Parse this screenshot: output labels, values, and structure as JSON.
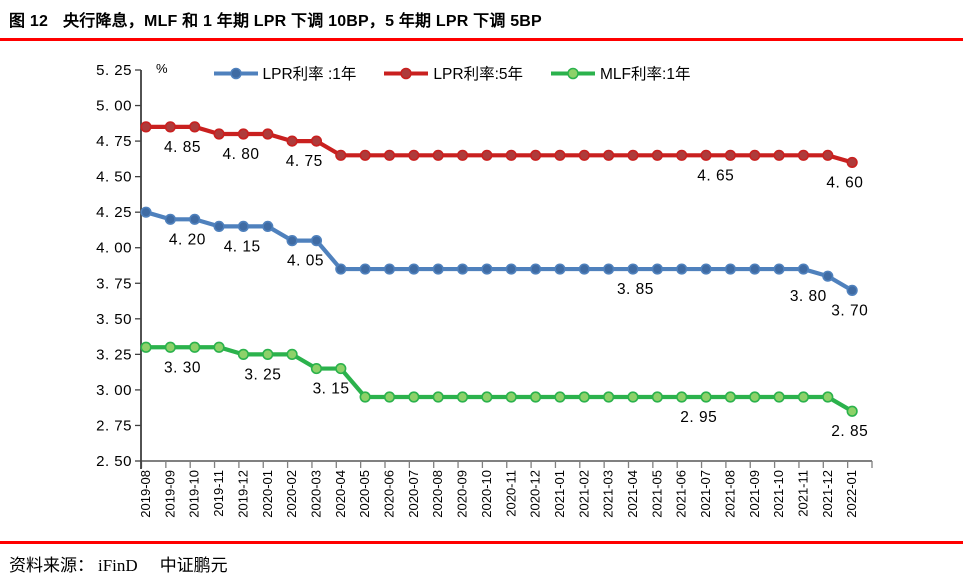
{
  "theme": {
    "accent_color": "#FF0000"
  },
  "header": {
    "figure_label": "图 12",
    "title": "央行降息，MLF 和 1 年期 LPR 下调 10BP，5 年期 LPR 下调 5BP"
  },
  "footer": {
    "source_prefix": "资料来源：",
    "sources": [
      "iFinD",
      "中证鹏元"
    ]
  },
  "chart_data": {
    "type": "line",
    "unit_label": "%",
    "legend_position": "top",
    "grid": false,
    "ylim": [
      2.5,
      5.25
    ],
    "ytick_step": 0.25,
    "ytick_labels": [
      "5. 25",
      "5. 00",
      "4. 75",
      "4. 50",
      "4. 25",
      "4. 00",
      "3. 75",
      "3. 50",
      "3. 25",
      "3. 00",
      "2. 75",
      "2. 50"
    ],
    "categories": [
      "2019-08",
      "2019-09",
      "2019-10",
      "2019-11",
      "2019-12",
      "2020-01",
      "2020-02",
      "2020-03",
      "2020-04",
      "2020-05",
      "2020-06",
      "2020-07",
      "2020-08",
      "2020-09",
      "2020-10",
      "2020-11",
      "2020-12",
      "2021-01",
      "2021-02",
      "2021-03",
      "2021-04",
      "2021-05",
      "2021-06",
      "2021-07",
      "2021-08",
      "2021-09",
      "2021-10",
      "2021-11",
      "2021-12",
      "2022-01"
    ],
    "series": [
      {
        "name": "LPR利率 :1年",
        "line_color": "#4F81BD",
        "marker_color": "#3F6BA3",
        "values": [
          4.25,
          4.2,
          4.2,
          4.15,
          4.15,
          4.15,
          4.05,
          4.05,
          3.85,
          3.85,
          3.85,
          3.85,
          3.85,
          3.85,
          3.85,
          3.85,
          3.85,
          3.85,
          3.85,
          3.85,
          3.85,
          3.85,
          3.85,
          3.85,
          3.85,
          3.85,
          3.85,
          3.85,
          3.8,
          3.7
        ]
      },
      {
        "name": "LPR利率:5年",
        "line_color": "#C9201F",
        "marker_color": "#AE3B3B",
        "values": [
          4.85,
          4.85,
          4.85,
          4.8,
          4.8,
          4.8,
          4.75,
          4.75,
          4.65,
          4.65,
          4.65,
          4.65,
          4.65,
          4.65,
          4.65,
          4.65,
          4.65,
          4.65,
          4.65,
          4.65,
          4.65,
          4.65,
          4.65,
          4.65,
          4.65,
          4.65,
          4.65,
          4.65,
          4.65,
          4.6
        ]
      },
      {
        "name": "MLF利率:1年",
        "line_color": "#2BB24C",
        "marker_color": "#8DD169",
        "values": [
          3.3,
          3.3,
          3.3,
          3.3,
          3.25,
          3.25,
          3.25,
          3.15,
          3.15,
          2.95,
          2.95,
          2.95,
          2.95,
          2.95,
          2.95,
          2.95,
          2.95,
          2.95,
          2.95,
          2.95,
          2.95,
          2.95,
          2.95,
          2.95,
          2.95,
          2.95,
          2.95,
          2.95,
          2.95,
          2.85
        ]
      }
    ],
    "annotations": [
      {
        "text": "4. 85",
        "x_index": 1.5,
        "value": 4.85
      },
      {
        "text": "4. 80",
        "x_index": 3.9,
        "value": 4.8
      },
      {
        "text": "4. 75",
        "x_index": 6.5,
        "value": 4.75
      },
      {
        "text": "4. 65",
        "x_index": 23.4,
        "value": 4.65
      },
      {
        "text": "4. 60",
        "x_index": 28.7,
        "value": 4.6
      },
      {
        "text": "4. 20",
        "x_index": 1.7,
        "value": 4.2
      },
      {
        "text": "4. 15",
        "x_index": 3.95,
        "value": 4.15
      },
      {
        "text": "4. 05",
        "x_index": 6.55,
        "value": 4.05
      },
      {
        "text": "3. 85",
        "x_index": 20.1,
        "value": 3.85
      },
      {
        "text": "3. 80",
        "x_index": 27.2,
        "value": 3.8
      },
      {
        "text": "3. 70",
        "x_index": 28.9,
        "value": 3.7
      },
      {
        "text": "3. 30",
        "x_index": 1.5,
        "value": 3.3
      },
      {
        "text": "3. 25",
        "x_index": 4.8,
        "value": 3.25
      },
      {
        "text": "3. 15",
        "x_index": 7.6,
        "value": 3.15
      },
      {
        "text": "2. 95",
        "x_index": 22.7,
        "value": 2.95
      },
      {
        "text": "2. 85",
        "x_index": 28.9,
        "value": 2.85
      }
    ]
  }
}
